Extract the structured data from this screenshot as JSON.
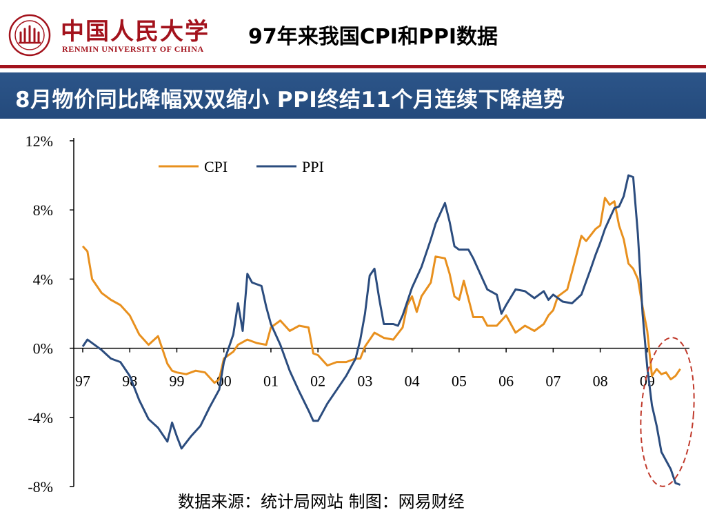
{
  "header": {
    "logo_cn": "中国人民大学",
    "logo_en": "RENMIN UNIVERSITY OF CHINA",
    "page_title": "97年来我国CPI和PPI数据"
  },
  "banner": {
    "headline": "8月物价同比降幅双双缩小 PPI终结11个月连续下降趋势"
  },
  "colors": {
    "brand_red": "#a3121c",
    "banner_blue": "#2a5286",
    "cpi": "#e8901e",
    "ppi": "#2b4c7e",
    "highlight_circle": "#c0392b"
  },
  "chart_data": {
    "type": "line",
    "x_unit": "years since Jan 1997 (tick labels are two-digit years)",
    "x_ticks": [
      "97",
      "98",
      "99",
      "00",
      "01",
      "02",
      "03",
      "04",
      "05",
      "06",
      "07",
      "08",
      "09"
    ],
    "y_ticks": [
      "12%",
      "8%",
      "4%",
      "0%",
      "-4%",
      "-8%"
    ],
    "ylim": [
      -8,
      12
    ],
    "xlim": [
      1997,
      2009.75
    ],
    "grid": false,
    "legend_position": "top-left",
    "series": [
      {
        "name": "CPI",
        "points": [
          [
            1997.0,
            5.9
          ],
          [
            1997.1,
            5.6
          ],
          [
            1997.2,
            4.0
          ],
          [
            1997.4,
            3.2
          ],
          [
            1997.6,
            2.8
          ],
          [
            1997.8,
            2.5
          ],
          [
            1998.0,
            1.9
          ],
          [
            1998.2,
            0.8
          ],
          [
            1998.4,
            0.2
          ],
          [
            1998.6,
            0.7
          ],
          [
            1998.8,
            -0.9
          ],
          [
            1998.9,
            -1.3
          ],
          [
            1999.0,
            -1.4
          ],
          [
            1999.2,
            -1.5
          ],
          [
            1999.4,
            -1.3
          ],
          [
            1999.6,
            -1.4
          ],
          [
            1999.8,
            -2.0
          ],
          [
            1999.9,
            -1.8
          ],
          [
            2000.0,
            -0.6
          ],
          [
            2000.2,
            -0.2
          ],
          [
            2000.3,
            0.2
          ],
          [
            2000.5,
            0.5
          ],
          [
            2000.7,
            0.3
          ],
          [
            2000.9,
            0.2
          ],
          [
            2001.0,
            1.2
          ],
          [
            2001.2,
            1.6
          ],
          [
            2001.4,
            1.0
          ],
          [
            2001.6,
            1.3
          ],
          [
            2001.8,
            1.2
          ],
          [
            2001.9,
            -0.3
          ],
          [
            2002.0,
            -0.4
          ],
          [
            2002.2,
            -1.0
          ],
          [
            2002.4,
            -0.8
          ],
          [
            2002.6,
            -0.8
          ],
          [
            2002.8,
            -0.6
          ],
          [
            2002.9,
            -0.6
          ],
          [
            2003.0,
            0.1
          ],
          [
            2003.2,
            0.9
          ],
          [
            2003.4,
            0.6
          ],
          [
            2003.6,
            0.5
          ],
          [
            2003.8,
            1.2
          ],
          [
            2003.9,
            2.5
          ],
          [
            2004.0,
            3.0
          ],
          [
            2004.1,
            2.1
          ],
          [
            2004.2,
            3.0
          ],
          [
            2004.4,
            3.8
          ],
          [
            2004.5,
            5.3
          ],
          [
            2004.7,
            5.2
          ],
          [
            2004.8,
            4.3
          ],
          [
            2004.9,
            3.0
          ],
          [
            2005.0,
            2.8
          ],
          [
            2005.1,
            3.9
          ],
          [
            2005.3,
            1.8
          ],
          [
            2005.5,
            1.8
          ],
          [
            2005.6,
            1.3
          ],
          [
            2005.8,
            1.3
          ],
          [
            2005.9,
            1.6
          ],
          [
            2006.0,
            1.9
          ],
          [
            2006.2,
            0.9
          ],
          [
            2006.4,
            1.3
          ],
          [
            2006.6,
            1.0
          ],
          [
            2006.8,
            1.4
          ],
          [
            2006.9,
            1.9
          ],
          [
            2007.0,
            2.2
          ],
          [
            2007.1,
            3.0
          ],
          [
            2007.3,
            3.4
          ],
          [
            2007.4,
            4.4
          ],
          [
            2007.6,
            6.5
          ],
          [
            2007.7,
            6.2
          ],
          [
            2007.9,
            6.9
          ],
          [
            2008.0,
            7.1
          ],
          [
            2008.1,
            8.7
          ],
          [
            2008.2,
            8.3
          ],
          [
            2008.3,
            8.5
          ],
          [
            2008.4,
            7.1
          ],
          [
            2008.5,
            6.3
          ],
          [
            2008.6,
            4.9
          ],
          [
            2008.7,
            4.6
          ],
          [
            2008.8,
            4.0
          ],
          [
            2008.9,
            2.4
          ],
          [
            2009.0,
            1.0
          ],
          [
            2009.1,
            -1.6
          ],
          [
            2009.2,
            -1.2
          ],
          [
            2009.3,
            -1.5
          ],
          [
            2009.4,
            -1.4
          ],
          [
            2009.5,
            -1.8
          ],
          [
            2009.6,
            -1.6
          ],
          [
            2009.7,
            -1.2
          ]
        ]
      },
      {
        "name": "PPI",
        "points": [
          [
            1997.0,
            0.1
          ],
          [
            1997.1,
            0.5
          ],
          [
            1997.2,
            0.3
          ],
          [
            1997.4,
            -0.1
          ],
          [
            1997.6,
            -0.6
          ],
          [
            1997.8,
            -0.8
          ],
          [
            1998.0,
            -1.6
          ],
          [
            1998.2,
            -3.0
          ],
          [
            1998.4,
            -4.1
          ],
          [
            1998.6,
            -4.6
          ],
          [
            1998.8,
            -5.4
          ],
          [
            1998.9,
            -4.3
          ],
          [
            1999.0,
            -5.1
          ],
          [
            1999.1,
            -5.8
          ],
          [
            1999.3,
            -5.1
          ],
          [
            1999.5,
            -4.5
          ],
          [
            1999.7,
            -3.4
          ],
          [
            1999.9,
            -2.4
          ],
          [
            2000.0,
            -0.8
          ],
          [
            2000.2,
            0.8
          ],
          [
            2000.3,
            2.6
          ],
          [
            2000.4,
            1.0
          ],
          [
            2000.5,
            4.3
          ],
          [
            2000.6,
            3.8
          ],
          [
            2000.8,
            3.6
          ],
          [
            2000.9,
            2.4
          ],
          [
            2001.0,
            1.4
          ],
          [
            2001.2,
            0.2
          ],
          [
            2001.4,
            -1.3
          ],
          [
            2001.6,
            -2.5
          ],
          [
            2001.8,
            -3.6
          ],
          [
            2001.9,
            -4.2
          ],
          [
            2002.0,
            -4.2
          ],
          [
            2002.2,
            -3.2
          ],
          [
            2002.4,
            -2.4
          ],
          [
            2002.6,
            -1.6
          ],
          [
            2002.8,
            -0.6
          ],
          [
            2002.9,
            0.5
          ],
          [
            2003.0,
            2.0
          ],
          [
            2003.1,
            4.2
          ],
          [
            2003.2,
            4.6
          ],
          [
            2003.3,
            2.9
          ],
          [
            2003.4,
            1.4
          ],
          [
            2003.6,
            1.4
          ],
          [
            2003.7,
            1.3
          ],
          [
            2003.8,
            1.9
          ],
          [
            2004.0,
            3.5
          ],
          [
            2004.2,
            4.7
          ],
          [
            2004.4,
            6.3
          ],
          [
            2004.5,
            7.2
          ],
          [
            2004.7,
            8.4
          ],
          [
            2004.8,
            7.3
          ],
          [
            2004.9,
            5.9
          ],
          [
            2005.0,
            5.7
          ],
          [
            2005.2,
            5.7
          ],
          [
            2005.3,
            5.2
          ],
          [
            2005.5,
            4.0
          ],
          [
            2005.6,
            3.4
          ],
          [
            2005.8,
            3.1
          ],
          [
            2005.9,
            2.0
          ],
          [
            2006.0,
            2.5
          ],
          [
            2006.2,
            3.4
          ],
          [
            2006.4,
            3.3
          ],
          [
            2006.6,
            2.9
          ],
          [
            2006.8,
            3.3
          ],
          [
            2006.9,
            2.8
          ],
          [
            2007.0,
            3.1
          ],
          [
            2007.2,
            2.7
          ],
          [
            2007.4,
            2.6
          ],
          [
            2007.6,
            3.1
          ],
          [
            2007.8,
            4.6
          ],
          [
            2007.9,
            5.4
          ],
          [
            2008.0,
            6.1
          ],
          [
            2008.1,
            6.9
          ],
          [
            2008.2,
            7.5
          ],
          [
            2008.3,
            8.1
          ],
          [
            2008.4,
            8.2
          ],
          [
            2008.5,
            8.8
          ],
          [
            2008.6,
            10.0
          ],
          [
            2008.7,
            9.9
          ],
          [
            2008.8,
            6.6
          ],
          [
            2008.9,
            2.0
          ],
          [
            2009.0,
            -1.1
          ],
          [
            2009.1,
            -3.3
          ],
          [
            2009.2,
            -4.5
          ],
          [
            2009.3,
            -6.0
          ],
          [
            2009.5,
            -7.0
          ],
          [
            2009.6,
            -7.8
          ],
          [
            2009.7,
            -7.9
          ]
        ]
      }
    ],
    "annotation": "dashed red ellipse highlighting 2009 values"
  },
  "footer": {
    "source": "数据来源：统计局网站  制图：网易财经"
  }
}
